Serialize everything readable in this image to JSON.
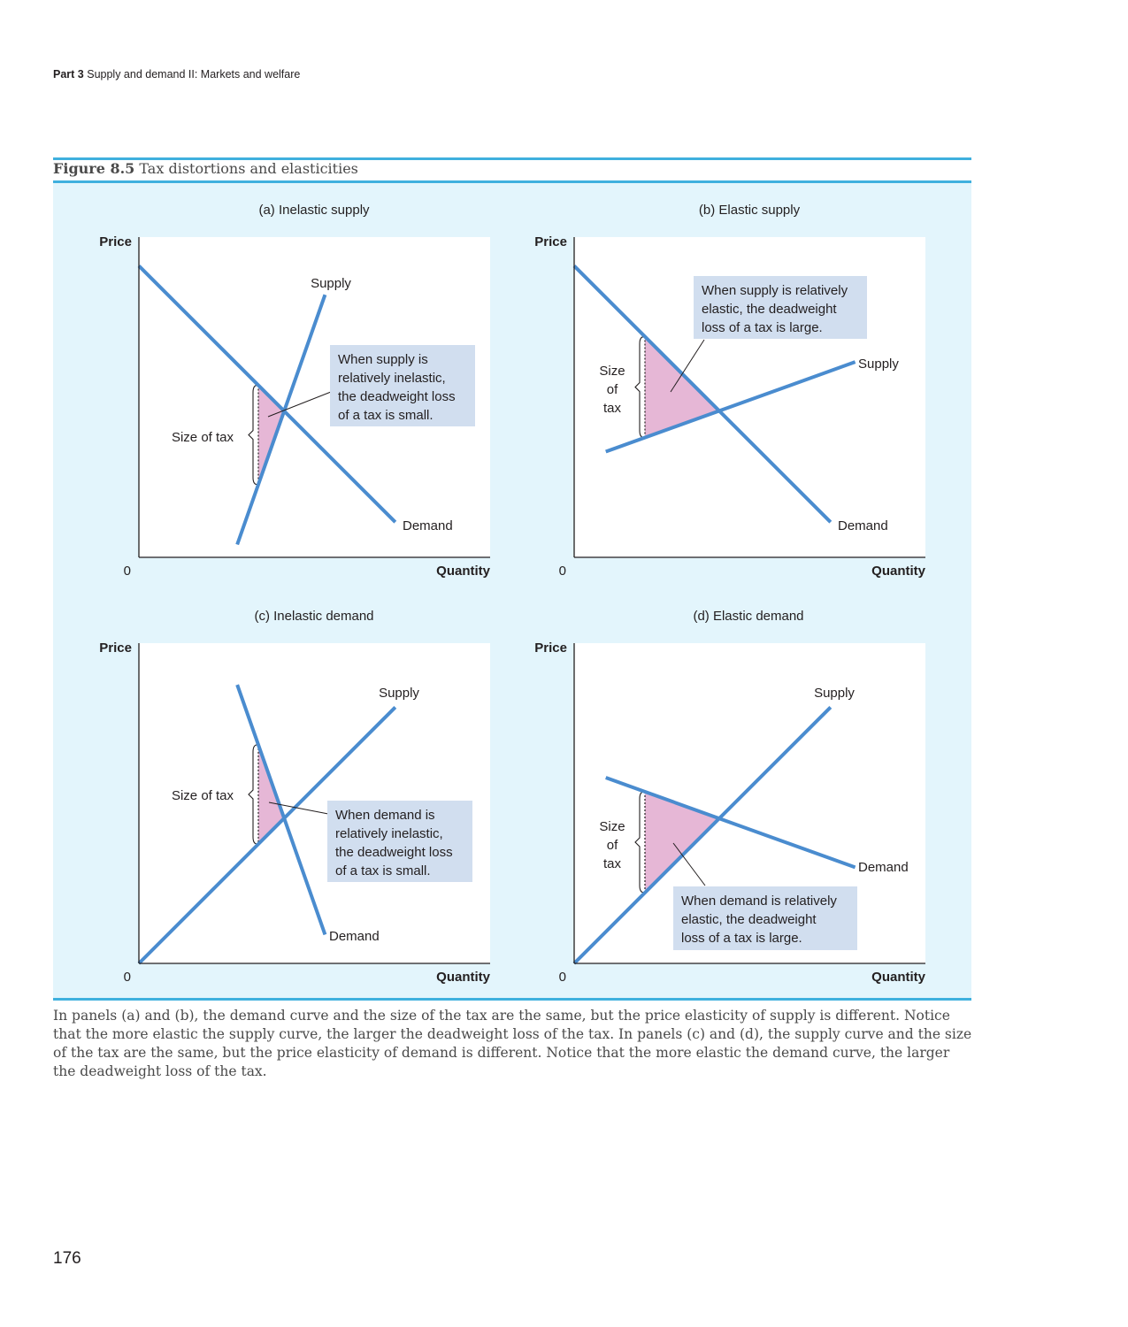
{
  "header": {
    "part": "Part 3",
    "title": "Supply and demand II: Markets and welfare"
  },
  "figure": {
    "number": "Figure 8.5",
    "title": "Tax distortions and elasticities"
  },
  "colors": {
    "curve": "#4a8ccf",
    "deadweight_loss": "#e6b7d6",
    "panel_bg": "#e3f5fc",
    "note_bg": "#d1deef",
    "rule": "#3fb0de"
  },
  "chart_data": [
    {
      "type": "line",
      "title": "(a) Inelastic supply",
      "ylabel": "Price",
      "xlabel": "Quantity",
      "origin": "0",
      "series": [
        {
          "name": "Supply",
          "points": [
            [
              2.8,
              0.4
            ],
            [
              5.3,
              8.2
            ]
          ]
        },
        {
          "name": "Demand",
          "points": [
            [
              0,
              9.1
            ],
            [
              7.3,
              1.1
            ]
          ]
        }
      ],
      "tax_label": "Size of tax",
      "note": [
        "When supply is",
        "relatively inelastic,",
        "the deadweight loss",
        "of a tax is small."
      ]
    },
    {
      "type": "line",
      "title": "(b) Elastic supply",
      "ylabel": "Price",
      "xlabel": "Quantity",
      "origin": "0",
      "series": [
        {
          "name": "Supply",
          "points": [
            [
              0.9,
              3.3
            ],
            [
              8,
              6.1
            ]
          ]
        },
        {
          "name": "Demand",
          "points": [
            [
              0,
              9.1
            ],
            [
              7.3,
              1.1
            ]
          ]
        }
      ],
      "tax_label": [
        "Size",
        "of",
        "tax"
      ],
      "note": [
        "When supply is relatively",
        "elastic, the deadweight",
        "loss of a tax is large."
      ]
    },
    {
      "type": "line",
      "title": "(c) Inelastic demand",
      "ylabel": "Price",
      "xlabel": "Quantity",
      "origin": "0",
      "series": [
        {
          "name": "Supply",
          "points": [
            [
              0,
              0
            ],
            [
              7.3,
              8
            ]
          ]
        },
        {
          "name": "Demand",
          "points": [
            [
              2.8,
              8.7
            ],
            [
              5.3,
              0.9
            ]
          ]
        }
      ],
      "tax_label": "Size of tax",
      "note": [
        "When demand is",
        "relatively inelastic,",
        "the deadweight loss",
        "of a tax is small."
      ]
    },
    {
      "type": "line",
      "title": "(d) Elastic demand",
      "ylabel": "Price",
      "xlabel": "Quantity",
      "origin": "0",
      "series": [
        {
          "name": "Supply",
          "points": [
            [
              0,
              0
            ],
            [
              7.3,
              8
            ]
          ]
        },
        {
          "name": "Demand",
          "points": [
            [
              0.9,
              5.8
            ],
            [
              8,
              3
            ]
          ]
        }
      ],
      "tax_label": [
        "Size",
        "of",
        "tax"
      ],
      "note": [
        "When demand is relatively",
        "elastic, the deadweight",
        "loss of a tax is large."
      ]
    }
  ],
  "caption": "In panels (a) and (b), the demand curve and the size of the tax are the same, but the price elasticity of supply is different. Notice that the more elastic the supply curve, the larger the deadweight loss of the tax. In panels (c) and (d), the supply curve and the size of the tax are the same, but the price elasticity of demand is different. Notice that the more elastic the demand curve, the larger the deadweight loss of the tax.",
  "page_number": "176"
}
